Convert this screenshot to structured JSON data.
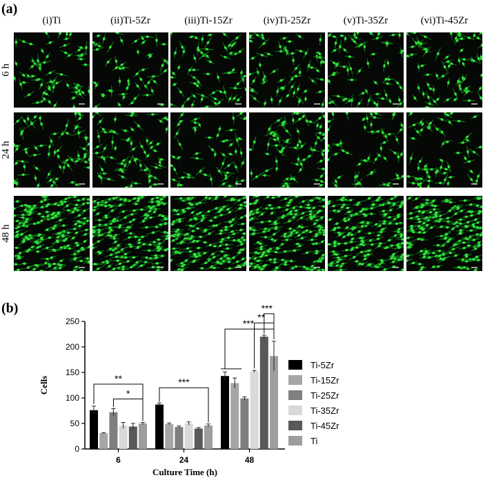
{
  "panel_a": {
    "label": "(a)",
    "columns": [
      "(i)Ti",
      "(ii)Ti-5Zr",
      "(iii)Ti-15Zr",
      "(iv)Ti-25Zr",
      "(v)Ti-35Zr",
      "(vi)Ti-45Zr"
    ],
    "rows": [
      "6 h",
      "24 h",
      "48 h"
    ],
    "cell_color": "#2fe03a",
    "background_color": "#050805"
  },
  "panel_b": {
    "label": "(b)"
  },
  "chart_data": {
    "type": "bar",
    "categories": [
      "6",
      "24",
      "48"
    ],
    "xlabel": "Culture Time (h)",
    "ylabel": "Cells",
    "ylim": [
      0,
      250
    ],
    "yticks": [
      0,
      50,
      100,
      150,
      200,
      250
    ],
    "grid": false,
    "legend_position": "right",
    "series": [
      {
        "name": "Ti-5Zr",
        "color": "#000000",
        "values": [
          76,
          87,
          143
        ],
        "errors": [
          8,
          3,
          8
        ]
      },
      {
        "name": "Ti-15Zr",
        "color": "#a6a6a6",
        "values": [
          31,
          49,
          129
        ],
        "errors": [
          1,
          2,
          10
        ]
      },
      {
        "name": "Ti-25Zr",
        "color": "#7f7f7f",
        "values": [
          72,
          43,
          99
        ],
        "errors": [
          7,
          2,
          3
        ]
      },
      {
        "name": "Ti-35Zr",
        "color": "#d9d9d9",
        "values": [
          46,
          50,
          152
        ],
        "errors": [
          6,
          3,
          2
        ]
      },
      {
        "name": "Ti-45Zr",
        "color": "#595959",
        "values": [
          44,
          40,
          220
        ],
        "errors": [
          6,
          2,
          3
        ]
      },
      {
        "name": "Ti",
        "color": "#9e9e9e",
        "values": [
          50,
          46,
          182
        ],
        "errors": [
          2,
          3,
          29
        ]
      }
    ],
    "annotations": [
      {
        "text": "**",
        "group": 0
      },
      {
        "text": "*",
        "group": 0
      },
      {
        "text": "***",
        "group": 1
      },
      {
        "text": "***",
        "group": 2
      },
      {
        "text": "**",
        "group": 2
      },
      {
        "text": "***",
        "group": 2
      }
    ]
  }
}
